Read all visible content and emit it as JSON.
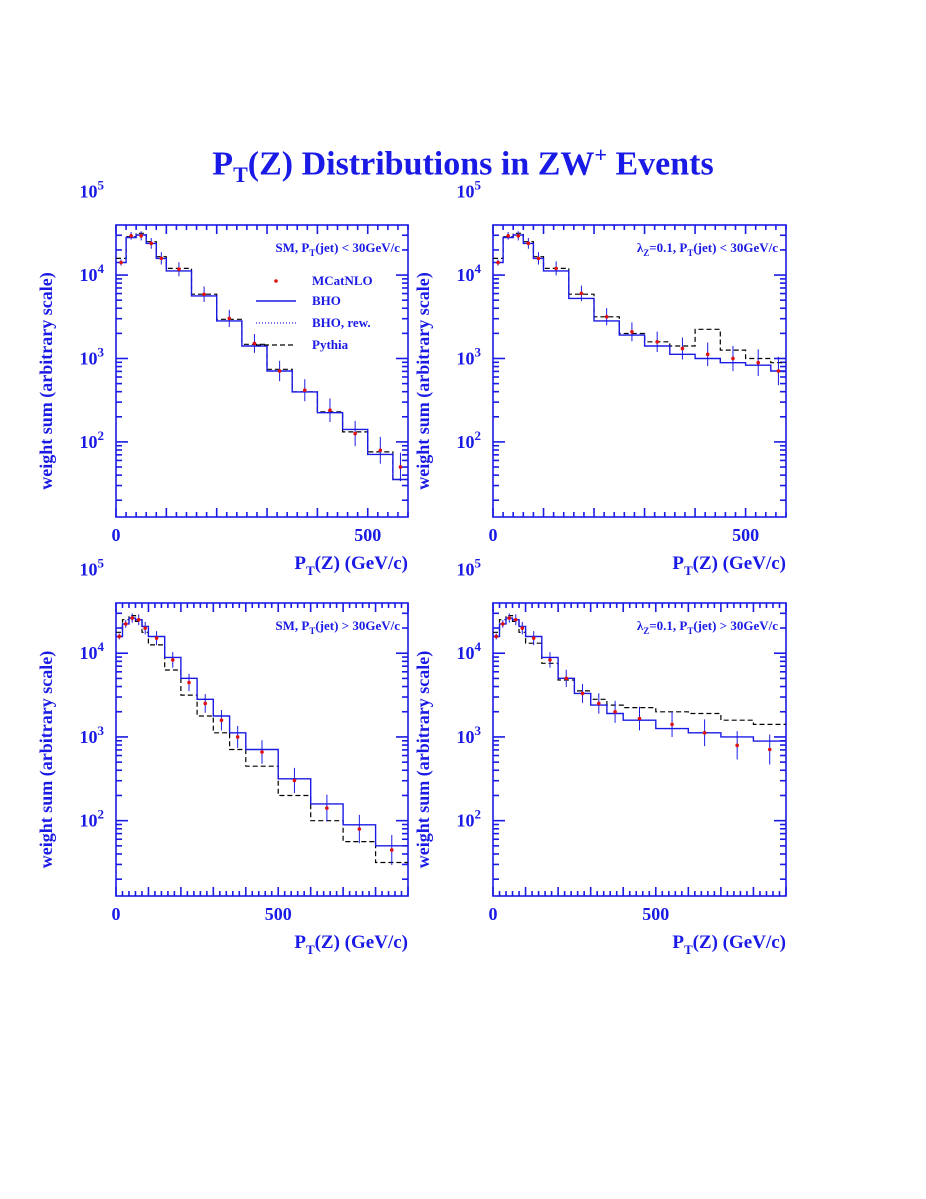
{
  "page": {
    "title_main": "P",
    "title_sub": "T",
    "title_mid": "(Z) Distributions in ZW",
    "title_sup": "+",
    "title_end": " Events"
  },
  "colors": {
    "frame": "#1a1ae6",
    "bho": "#1a1ae6",
    "mcatnlo": "#e01010",
    "pythia": "#000000"
  },
  "chart_data": [
    {
      "type": "line",
      "panel": "top-left",
      "label": "SM,      P_T(jet) < 30GeV/c",
      "label_parts": {
        "pre": "SM,",
        "p": "P",
        "sub": "T",
        "post": "(jet) < 30GeV/c"
      },
      "xlabel": "P_T(Z) (GeV/c)",
      "ylabel": "weight sum (arbitrary scale)",
      "xlim": [
        0,
        580
      ],
      "ylim_log10": [
        1.1,
        4.6
      ],
      "xticks": [
        0,
        500
      ],
      "yticks_exp": [
        2,
        3,
        4,
        5
      ],
      "legend": [
        "MCatNLO",
        "BHO",
        "BHO, rew.",
        "Pythia"
      ],
      "x": [
        0,
        20,
        40,
        60,
        80,
        100,
        150,
        200,
        250,
        300,
        350,
        400,
        450,
        500,
        550,
        580
      ],
      "series": [
        {
          "name": "BHO",
          "log10": [
            4.15,
            4.45,
            4.48,
            4.38,
            4.2,
            4.05,
            3.75,
            3.45,
            3.15,
            2.85,
            2.6,
            2.35,
            2.15,
            1.85,
            1.55,
            1.3
          ]
        },
        {
          "name": "MCatNLO",
          "log10": [
            4.15,
            4.47,
            4.47,
            4.38,
            4.2,
            4.07,
            3.77,
            3.48,
            3.18,
            2.85,
            2.62,
            2.38,
            2.1,
            1.9,
            1.7,
            1.35
          ]
        },
        {
          "name": "Pythia",
          "log10": [
            4.2,
            4.46,
            4.5,
            4.4,
            4.22,
            4.08,
            3.77,
            3.47,
            3.17,
            2.87,
            2.6,
            2.36,
            2.12,
            1.88,
            1.55,
            1.35
          ]
        }
      ]
    },
    {
      "type": "line",
      "panel": "top-right",
      "label": "λ_Z=0.1,  P_T(jet) < 30GeV/c",
      "label_parts": {
        "pre": "λ",
        "presub": "Z",
        "mid": "=0.1,  P",
        "sub": "T",
        "post": "(jet) < 30GeV/c"
      },
      "xlabel": "P_T(Z) (GeV/c)",
      "ylabel": "weight sum (arbitrary scale)",
      "xlim": [
        0,
        580
      ],
      "ylim_log10": [
        1.1,
        4.6
      ],
      "xticks": [
        0,
        500
      ],
      "yticks_exp": [
        2,
        3,
        4,
        5
      ],
      "x": [
        0,
        20,
        40,
        60,
        80,
        100,
        150,
        200,
        250,
        300,
        350,
        400,
        450,
        500,
        550,
        580
      ],
      "series": [
        {
          "name": "BHO",
          "log10": [
            4.15,
            4.45,
            4.48,
            4.38,
            4.2,
            4.05,
            3.72,
            3.45,
            3.28,
            3.15,
            3.05,
            3.0,
            2.95,
            2.92,
            2.85,
            2.8
          ]
        },
        {
          "name": "MCatNLO",
          "log10": [
            4.15,
            4.47,
            4.47,
            4.38,
            4.2,
            4.08,
            3.78,
            3.5,
            3.32,
            3.2,
            3.12,
            3.05,
            3.0,
            2.95,
            2.85,
            2.8
          ]
        },
        {
          "name": "Pythia",
          "log10": [
            4.2,
            4.46,
            4.5,
            4.4,
            4.22,
            4.08,
            3.77,
            3.5,
            3.3,
            3.2,
            3.15,
            3.35,
            3.1,
            3.0,
            2.95,
            2.85
          ]
        }
      ]
    },
    {
      "type": "line",
      "panel": "bottom-left",
      "label": "SM,      P_T(jet) > 30GeV/c",
      "label_parts": {
        "pre": "SM,",
        "p": "P",
        "sub": "T",
        "post": "(jet) > 30GeV/c"
      },
      "xlabel": "P_T(Z) (GeV/c)",
      "ylabel": "weight sum (arbitrary scale)",
      "xlim": [
        0,
        900
      ],
      "ylim_log10": [
        1.1,
        4.6
      ],
      "xticks": [
        0,
        500
      ],
      "yticks_exp": [
        2,
        3,
        4,
        5
      ],
      "x": [
        0,
        20,
        40,
        60,
        80,
        100,
        150,
        200,
        250,
        300,
        350,
        400,
        500,
        600,
        700,
        800,
        900
      ],
      "series": [
        {
          "name": "BHO",
          "log10": [
            4.2,
            4.35,
            4.42,
            4.4,
            4.32,
            4.2,
            3.95,
            3.7,
            3.45,
            3.25,
            3.05,
            2.85,
            2.5,
            2.2,
            1.95,
            1.7,
            1.45
          ]
        },
        {
          "name": "MCatNLO",
          "log10": [
            4.2,
            4.35,
            4.42,
            4.4,
            4.3,
            4.18,
            3.92,
            3.65,
            3.4,
            3.2,
            3.0,
            2.82,
            2.48,
            2.15,
            1.9,
            1.65,
            1.5
          ]
        },
        {
          "name": "Pythia",
          "log10": [
            4.25,
            4.4,
            4.45,
            4.38,
            4.25,
            4.1,
            3.8,
            3.5,
            3.25,
            3.05,
            2.85,
            2.65,
            2.3,
            2.0,
            1.75,
            1.5,
            1.3
          ]
        }
      ]
    },
    {
      "type": "line",
      "panel": "bottom-right",
      "label": "λ_Z=0.1,  P_T(jet) > 30GeV/c",
      "label_parts": {
        "pre": "λ",
        "presub": "Z",
        "mid": "=0.1,  P",
        "sub": "T",
        "post": "(jet) > 30GeV/c"
      },
      "xlabel": "P_T(Z) (GeV/c)",
      "ylabel": "weight sum (arbitrary scale)",
      "xlim": [
        0,
        900
      ],
      "ylim_log10": [
        1.1,
        4.6
      ],
      "xticks": [
        0,
        500
      ],
      "yticks_exp": [
        2,
        3,
        4,
        5
      ],
      "x": [
        0,
        20,
        40,
        60,
        80,
        100,
        150,
        200,
        250,
        300,
        350,
        400,
        500,
        600,
        700,
        800,
        900
      ],
      "series": [
        {
          "name": "BHO",
          "log10": [
            4.2,
            4.35,
            4.42,
            4.4,
            4.32,
            4.2,
            3.95,
            3.7,
            3.52,
            3.38,
            3.28,
            3.2,
            3.1,
            3.05,
            3.0,
            2.95,
            2.92
          ]
        },
        {
          "name": "MCatNLO",
          "log10": [
            4.2,
            4.35,
            4.42,
            4.4,
            4.3,
            4.18,
            3.92,
            3.7,
            3.52,
            3.4,
            3.3,
            3.22,
            3.15,
            3.05,
            2.9,
            2.85,
            3.0
          ]
        },
        {
          "name": "Pythia",
          "log10": [
            4.25,
            4.4,
            4.45,
            4.38,
            4.25,
            4.12,
            3.88,
            3.68,
            3.55,
            3.45,
            3.38,
            3.35,
            3.3,
            3.28,
            3.2,
            3.15,
            3.1
          ]
        }
      ]
    }
  ]
}
